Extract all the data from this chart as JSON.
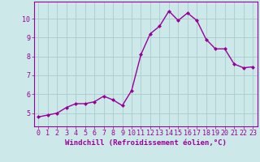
{
  "x": [
    0,
    1,
    2,
    3,
    4,
    5,
    6,
    7,
    8,
    9,
    10,
    11,
    12,
    13,
    14,
    15,
    16,
    17,
    18,
    19,
    20,
    21,
    22,
    23
  ],
  "y": [
    4.8,
    4.9,
    5.0,
    5.3,
    5.5,
    5.5,
    5.6,
    5.9,
    5.7,
    5.4,
    6.2,
    8.1,
    9.2,
    9.6,
    10.4,
    9.9,
    10.3,
    9.9,
    8.9,
    8.4,
    8.4,
    7.6,
    7.4,
    7.45
  ],
  "line_color": "#990099",
  "marker": "D",
  "marker_size": 2.0,
  "bg_color": "#cce8e8",
  "grid_color": "#aacccc",
  "xlabel": "Windchill (Refroidissement éolien,°C)",
  "xlim": [
    -0.5,
    23.5
  ],
  "ylim": [
    4.3,
    10.9
  ],
  "yticks": [
    5,
    6,
    7,
    8,
    9,
    10
  ],
  "xticks": [
    0,
    1,
    2,
    3,
    4,
    5,
    6,
    7,
    8,
    9,
    10,
    11,
    12,
    13,
    14,
    15,
    16,
    17,
    18,
    19,
    20,
    21,
    22,
    23
  ],
  "xlabel_fontsize": 6.5,
  "tick_fontsize": 6.0,
  "line_width": 1.0
}
